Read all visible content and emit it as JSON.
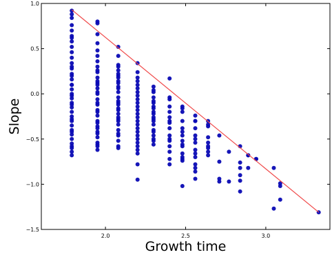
{
  "chart_data": {
    "type": "scatter",
    "title": "",
    "xlabel": "Growth time",
    "ylabel": "Slope",
    "xlim": [
      1.6,
      3.4
    ],
    "ylim": [
      -1.5,
      1.0
    ],
    "xticks": [
      2.0,
      2.5,
      3.0
    ],
    "xtick_labels": [
      "2.0",
      "2.5",
      "3.0"
    ],
    "yticks": [
      1.0,
      0.5,
      0.0,
      -0.5,
      -1.0,
      -1.5
    ],
    "ytick_labels": [
      "1.0",
      "0.5",
      "0.0",
      "−0.5",
      "−1.0",
      "−1.5"
    ],
    "grid": false,
    "legend": "none",
    "point_color": "#0a0ab4",
    "line_color": "#f04848",
    "series": [
      {
        "x": [
          1.79,
          1.79,
          1.79,
          1.79,
          1.79,
          1.79,
          1.79,
          1.79,
          1.79,
          1.79,
          1.79,
          1.79,
          1.79,
          1.79,
          1.79,
          1.79,
          1.79,
          1.79,
          1.79,
          1.79,
          1.79,
          1.79,
          1.79,
          1.79,
          1.79,
          1.79,
          1.79,
          1.79,
          1.79,
          1.79,
          1.79,
          1.79,
          1.79,
          1.79,
          1.79,
          1.79,
          1.79,
          1.79,
          1.79,
          1.79,
          1.95,
          1.95,
          1.95,
          1.95,
          1.95,
          1.95,
          1.95,
          1.95,
          1.95,
          1.95,
          1.95,
          1.95,
          1.95,
          1.95,
          1.95,
          1.95,
          1.95,
          1.95,
          1.95,
          1.95,
          1.95,
          1.95,
          1.95,
          1.95,
          1.95,
          1.95,
          1.95,
          1.95,
          1.95,
          1.95,
          1.95,
          1.95,
          1.95,
          1.95,
          2.08,
          2.08,
          2.08,
          2.08,
          2.08,
          2.08,
          2.08,
          2.08,
          2.08,
          2.08,
          2.08,
          2.08,
          2.08,
          2.08,
          2.08,
          2.08,
          2.08,
          2.08,
          2.08,
          2.08,
          2.08,
          2.08,
          2.08,
          2.08,
          2.08,
          2.08,
          2.08,
          2.08,
          2.08,
          2.08,
          2.2,
          2.2,
          2.2,
          2.2,
          2.2,
          2.2,
          2.2,
          2.2,
          2.2,
          2.2,
          2.2,
          2.2,
          2.2,
          2.2,
          2.2,
          2.2,
          2.2,
          2.2,
          2.2,
          2.2,
          2.2,
          2.2,
          2.2,
          2.2,
          2.2,
          2.2,
          2.3,
          2.3,
          2.3,
          2.3,
          2.3,
          2.3,
          2.3,
          2.3,
          2.3,
          2.3,
          2.3,
          2.3,
          2.3,
          2.3,
          2.3,
          2.3,
          2.3,
          2.3,
          2.3,
          2.3,
          2.4,
          2.4,
          2.4,
          2.4,
          2.4,
          2.4,
          2.4,
          2.4,
          2.4,
          2.4,
          2.4,
          2.4,
          2.4,
          2.4,
          2.4,
          2.4,
          2.48,
          2.48,
          2.48,
          2.48,
          2.48,
          2.48,
          2.48,
          2.48,
          2.48,
          2.48,
          2.48,
          2.48,
          2.48,
          2.48,
          2.48,
          2.56,
          2.56,
          2.56,
          2.56,
          2.56,
          2.56,
          2.56,
          2.56,
          2.56,
          2.56,
          2.56,
          2.56,
          2.56,
          2.56,
          2.64,
          2.64,
          2.64,
          2.64,
          2.64,
          2.64,
          2.64,
          2.64,
          2.64,
          2.71,
          2.71,
          2.71,
          2.71,
          2.77,
          2.77,
          2.84,
          2.84,
          2.84,
          2.84,
          2.84,
          2.84,
          2.89,
          2.89,
          2.89,
          2.94,
          2.94,
          3.05,
          3.05,
          3.09,
          3.09,
          3.09,
          3.33
        ],
        "y": [
          0.92,
          0.88,
          0.84,
          0.76,
          0.7,
          0.64,
          0.58,
          0.52,
          0.46,
          0.4,
          0.34,
          0.28,
          0.22,
          0.16,
          0.1,
          0.05,
          0.0,
          -0.05,
          -0.1,
          -0.15,
          -0.2,
          -0.25,
          -0.3,
          -0.35,
          -0.4,
          -0.45,
          -0.5,
          -0.55,
          -0.6,
          -0.64,
          -0.68,
          0.3,
          0.2,
          0.1,
          -0.02,
          -0.12,
          -0.28,
          -0.42,
          -0.58,
          0.62,
          0.8,
          0.78,
          0.66,
          0.56,
          0.42,
          0.36,
          0.3,
          0.24,
          0.18,
          0.12,
          0.06,
          0.0,
          -0.06,
          -0.12,
          -0.18,
          -0.24,
          -0.3,
          -0.36,
          -0.42,
          -0.48,
          -0.54,
          -0.58,
          -0.62,
          0.26,
          0.14,
          0.02,
          -0.1,
          -0.2,
          -0.32,
          -0.44,
          0.48,
          0.1,
          -0.38,
          -0.56,
          0.52,
          0.42,
          0.32,
          0.26,
          0.2,
          0.14,
          0.08,
          0.02,
          -0.04,
          -0.1,
          -0.16,
          -0.22,
          -0.28,
          -0.34,
          -0.4,
          -0.46,
          -0.52,
          -0.58,
          -0.6,
          0.3,
          0.18,
          0.06,
          -0.08,
          -0.18,
          -0.3,
          -0.44,
          0.22,
          -0.12,
          -0.26,
          0.12,
          0.34,
          0.24,
          0.14,
          0.06,
          -0.02,
          -0.1,
          -0.18,
          -0.26,
          -0.34,
          -0.42,
          -0.5,
          -0.58,
          -0.66,
          -0.78,
          -0.95,
          0.18,
          0.02,
          -0.14,
          -0.22,
          -0.3,
          0.1,
          -0.06,
          -0.38,
          -0.46,
          -0.54,
          -0.62,
          0.08,
          0.02,
          -0.04,
          -0.1,
          -0.16,
          -0.22,
          -0.28,
          -0.34,
          -0.4,
          -0.46,
          -0.52,
          -0.56,
          0.04,
          -0.08,
          -0.2,
          -0.3,
          -0.42,
          -0.5,
          -0.14,
          -0.26,
          0.17,
          -0.06,
          -0.14,
          -0.2,
          -0.26,
          -0.32,
          -0.38,
          -0.46,
          -0.52,
          -0.58,
          -0.64,
          -0.72,
          -0.78,
          -0.04,
          -0.3,
          -0.5,
          -0.14,
          -0.2,
          -0.3,
          -0.38,
          -0.46,
          -0.52,
          -0.58,
          -0.66,
          -0.7,
          -0.74,
          -1.02,
          -0.16,
          -0.42,
          -0.56,
          -0.72,
          -0.24,
          -0.3,
          -0.38,
          -0.46,
          -0.54,
          -0.62,
          -0.7,
          -0.78,
          -0.86,
          -0.94,
          -0.5,
          -0.66,
          -0.82,
          -0.3,
          -0.3,
          -0.36,
          -0.48,
          -0.54,
          -0.6,
          -0.64,
          -0.68,
          -0.34,
          -0.58,
          -0.46,
          -0.75,
          -0.94,
          -0.97,
          -0.64,
          -0.97,
          -0.58,
          -0.76,
          -0.82,
          -0.9,
          -0.96,
          -1.08,
          -0.68,
          -0.82,
          -0.68,
          -0.72,
          -0.72,
          -0.82,
          -1.27,
          -0.99,
          -1.02,
          -1.17,
          -1.31
        ]
      }
    ],
    "trend_line": {
      "x": [
        1.79,
        3.33
      ],
      "y": [
        0.93,
        -1.31
      ]
    }
  }
}
